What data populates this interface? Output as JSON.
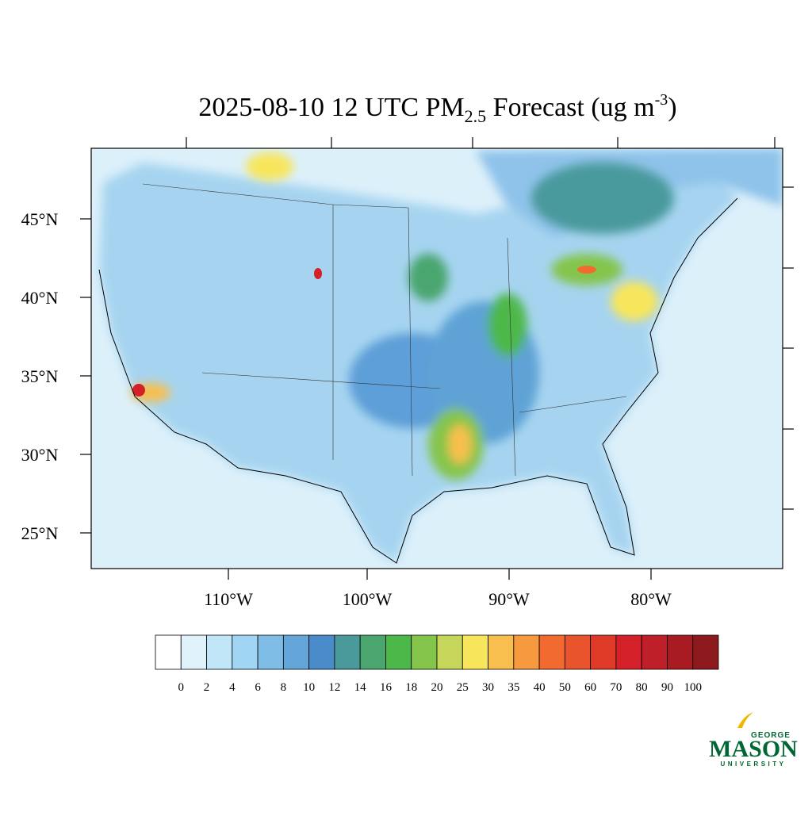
{
  "header": {
    "title_main": "2025-08-10 12 UTC PM",
    "title_sub": "2.5",
    "title_rest": " Forecast (ug m",
    "title_sup": "-3",
    "title_end": ")"
  },
  "map": {
    "lat_labels": [
      "45°N",
      "40°N",
      "35°N",
      "30°N",
      "25°N"
    ],
    "lon_labels": [
      "110°W",
      "100°W",
      "90°W",
      "80°W"
    ]
  },
  "colorbar": {
    "levels": [
      "0",
      "2",
      "4",
      "6",
      "8",
      "10",
      "12",
      "14",
      "16",
      "18",
      "20",
      "25",
      "30",
      "35",
      "40",
      "50",
      "60",
      "70",
      "80",
      "90",
      "100"
    ],
    "colors": [
      "#ffffff",
      "#e0f3fb",
      "#c0e6f7",
      "#a0d6f3",
      "#80bde6",
      "#64a6da",
      "#4a8bc9",
      "#4a9a9c",
      "#4aa66e",
      "#4db84a",
      "#84c54c",
      "#c5d65a",
      "#f7e65b",
      "#f8bf4e",
      "#f79a3f",
      "#f26a2f",
      "#e9542c",
      "#df3a27",
      "#d42029",
      "#bf1f28",
      "#a81b23",
      "#8c1a1c"
    ]
  },
  "logo": {
    "top": "GEORGE",
    "main": "MASON",
    "bottom": "UNIVERSITY"
  }
}
